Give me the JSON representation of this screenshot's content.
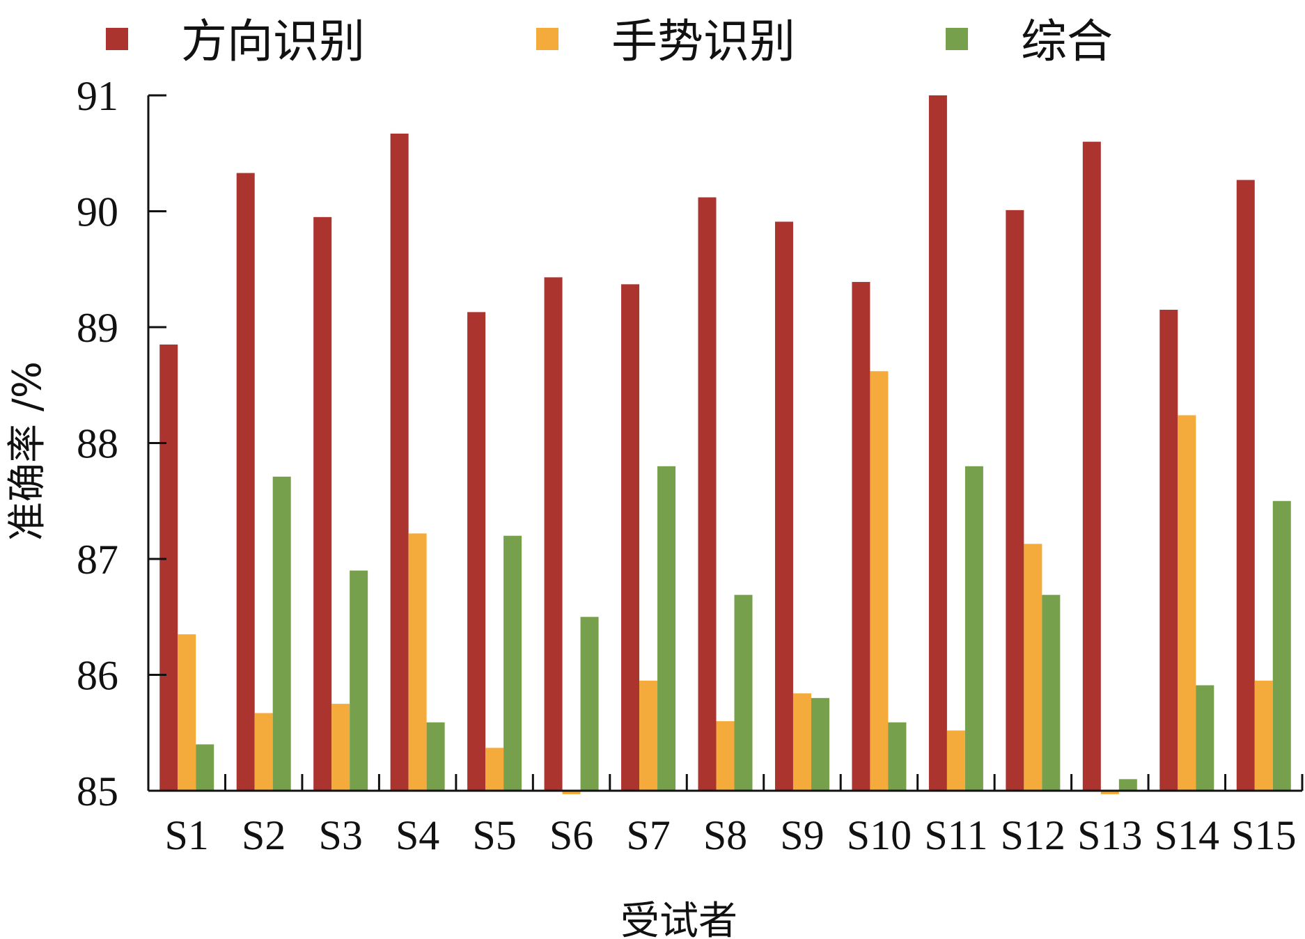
{
  "chart_data": {
    "type": "bar",
    "xlabel": "受试者",
    "ylabel": "准确率 /%",
    "ylim": [
      85,
      91
    ],
    "yticks": [
      "85",
      "86",
      "87",
      "88",
      "89",
      "90",
      "91"
    ],
    "grid": false,
    "legend_position": "top",
    "categories": [
      "S1",
      "S2",
      "S3",
      "S4",
      "S5",
      "S6",
      "S7",
      "S8",
      "S9",
      "S10",
      "S11",
      "S12",
      "S13",
      "S14",
      "S15"
    ],
    "series": [
      {
        "name": "方向识别",
        "color": "#ab342f",
        "values": [
          88.85,
          90.33,
          89.95,
          90.67,
          89.13,
          89.43,
          89.37,
          90.12,
          89.91,
          89.39,
          91.0,
          90.01,
          90.6,
          89.15,
          90.27
        ]
      },
      {
        "name": "手势识别",
        "color": "#f4ab3c",
        "values": [
          86.35,
          85.67,
          85.75,
          87.22,
          85.37,
          84.97,
          85.95,
          85.6,
          85.84,
          88.62,
          85.52,
          87.13,
          84.97,
          88.24,
          85.95
        ]
      },
      {
        "name": "综合",
        "color": "#76a04b",
        "values": [
          85.4,
          87.71,
          86.9,
          85.59,
          87.2,
          86.5,
          87.8,
          86.69,
          85.8,
          85.59,
          87.8,
          86.69,
          85.1,
          85.91,
          87.5
        ]
      }
    ]
  }
}
